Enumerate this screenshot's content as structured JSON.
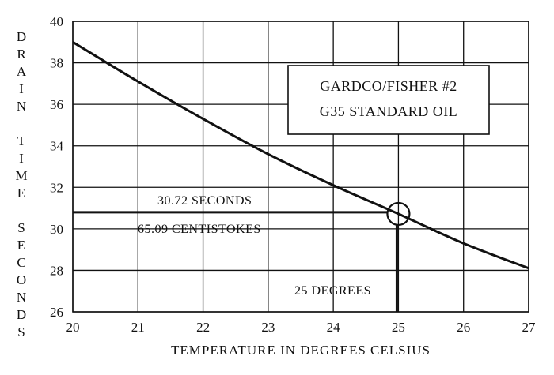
{
  "chart_data": {
    "type": "line",
    "title_lines": [
      "GARDCO/FISHER #2",
      "G35 STANDARD OIL"
    ],
    "xlabel": "TEMPERATURE IN DEGREES CELSIUS",
    "ylabel_words": [
      "DRAIN",
      "TIME",
      "SECONDS"
    ],
    "xlim": [
      20,
      27
    ],
    "ylim": [
      26,
      40
    ],
    "xticks": [
      20,
      21,
      22,
      23,
      24,
      25,
      26,
      27
    ],
    "yticks": [
      26,
      28,
      30,
      32,
      34,
      36,
      38,
      40
    ],
    "grid": true,
    "series": [
      {
        "x": [
          20,
          21,
          22,
          23,
          24,
          25,
          26,
          27
        ],
        "y": [
          39.0,
          37.1,
          35.3,
          33.6,
          32.1,
          30.72,
          29.3,
          28.1
        ]
      }
    ],
    "highlight": {
      "x": 25,
      "y": 30.72
    },
    "annotations": {
      "seconds": "30.72 SECONDS",
      "centistokes": "65.09 CENTISTOKES",
      "degrees": "25 DEGREES"
    }
  }
}
